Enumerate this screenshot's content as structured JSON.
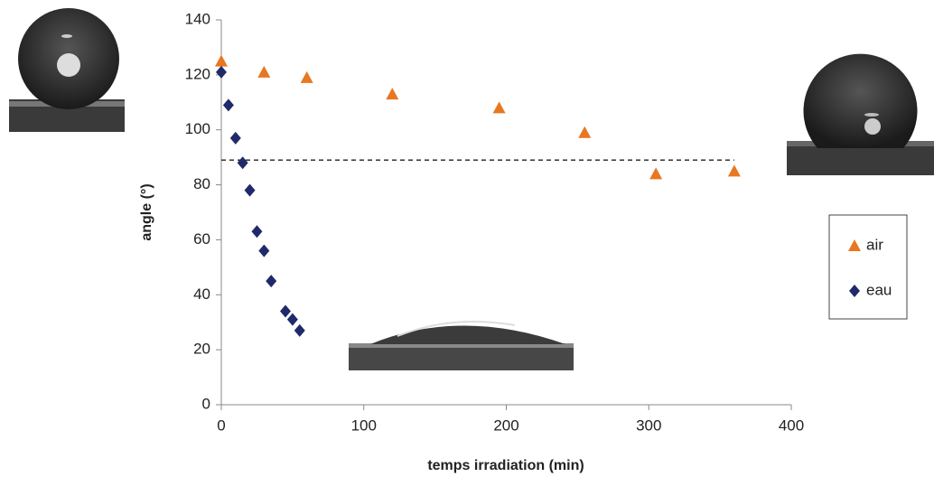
{
  "chart_data": {
    "type": "scatter",
    "x_label": "temps irradiation  (min)",
    "y_label": "angle (°)",
    "xlim": [
      0,
      400
    ],
    "xticks": [
      0,
      100,
      200,
      300,
      400
    ],
    "ylim": [
      0,
      140
    ],
    "yticks": [
      0,
      20,
      40,
      60,
      80,
      100,
      120,
      140
    ],
    "grid": false,
    "legend": "right",
    "reference_line": {
      "y": 89,
      "x": [
        0,
        360
      ]
    },
    "series": [
      {
        "name": "air",
        "color": "#e87722",
        "marker": "triangle",
        "x": [
          0,
          30,
          60,
          120,
          195,
          255,
          305,
          360
        ],
        "values": [
          125,
          121,
          119,
          113,
          108,
          99,
          84,
          85
        ]
      },
      {
        "name": "eau",
        "color": "#1f2a6b",
        "marker": "diamond",
        "x": [
          0,
          5,
          10,
          15,
          20,
          25,
          30,
          35,
          45,
          50,
          55
        ],
        "values": [
          121,
          109,
          97,
          88,
          78,
          63,
          56,
          45,
          34,
          31,
          27
        ]
      }
    ]
  }
}
